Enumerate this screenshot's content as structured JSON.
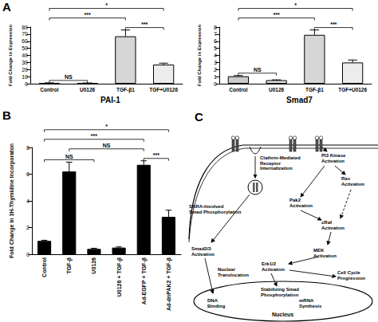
{
  "chart_data": [
    {
      "type": "bar",
      "title": "PAI-1",
      "categories": [
        "Control",
        "U0126",
        "TGF-β1",
        "TGF+U0126"
      ],
      "values": [
        1.0,
        0.8,
        67,
        27
      ],
      "errors": [
        0.2,
        0.2,
        9,
        2
      ],
      "colors": [
        "#ffffff",
        "#ffffff",
        "#d6d6d6",
        "#ececec"
      ],
      "y_label": "Fold Change in Expression",
      "ylim": [
        0,
        80
      ],
      "yticks": [
        0,
        10,
        20,
        30,
        40,
        50,
        60,
        70,
        80
      ],
      "grid": false,
      "significance": [
        {
          "from": "Control",
          "to": "U0126",
          "label": "NS"
        },
        {
          "from": "TGF-β1",
          "to": "TGF+U0126",
          "label": "***"
        },
        {
          "from": "Control",
          "to": "TGF-β1",
          "label": "***"
        },
        {
          "from": "Control",
          "to": "TGF+U0126",
          "label": "*"
        }
      ]
    },
    {
      "type": "bar",
      "title": "Smad7",
      "categories": [
        "Control",
        "U0126",
        "TGF-β1",
        "TGF+U0126"
      ],
      "values": [
        1.05,
        0.5,
        6.9,
        3.0
      ],
      "errors": [
        0.1,
        0.05,
        0.7,
        0.35
      ],
      "colors": [
        "#cccccc",
        "#e2e2e2",
        "#d6d6d6",
        "#ececec"
      ],
      "y_label": "Fold Change in Expression",
      "ylim": [
        0,
        8
      ],
      "yticks": [
        0,
        1,
        2,
        3,
        4,
        5,
        6,
        7,
        8
      ],
      "grid": false,
      "significance": [
        {
          "from": "Control",
          "to": "U0126",
          "label": "NS"
        },
        {
          "from": "TGF-β1",
          "to": "TGF+U0126",
          "label": "***"
        },
        {
          "from": "Control",
          "to": "TGF-β1",
          "label": "***"
        },
        {
          "from": "Control",
          "to": "TGF+U0126",
          "label": "*"
        }
      ]
    },
    {
      "type": "bar",
      "categories": [
        "Control",
        "TGF-β",
        "U0126",
        "U0126 + TGF-β",
        "Ad-EGFP + TGF-β",
        "Ad-dnPAK2 + TGF-β"
      ],
      "values": [
        1.0,
        6.2,
        0.4,
        0.5,
        6.7,
        2.8
      ],
      "errors": [
        0.05,
        0.7,
        0.05,
        0.05,
        0.3,
        0.5
      ],
      "color": "#000000",
      "y_label": "Fold Change in 3H-Thymidine Incorporaton",
      "ylim": [
        0,
        8
      ],
      "yticks": [
        0,
        2,
        4,
        6,
        8
      ],
      "grid": false,
      "significance": [
        {
          "from": "Ad-EGFP + TGF-β",
          "to": "Ad-dnPAK2 + TGF-β",
          "label": "***"
        },
        {
          "from": "Control",
          "to": "U0126",
          "label": "NS"
        },
        {
          "from": "TGF-β",
          "to": "Ad-EGFP + TGF-β",
          "label": "NS"
        },
        {
          "from": "Control",
          "to": "Ad-EGFP + TGF-β",
          "label": "***"
        },
        {
          "from": "Control",
          "to": "Ad-dnPAK2 + TGF-β",
          "label": "*"
        }
      ]
    }
  ],
  "panel_labels": [
    "A",
    "B",
    "C"
  ],
  "diagram": {
    "nodes": [
      [
        "PI3 Kinase",
        "Activation"
      ],
      [
        "Ras",
        "Activation"
      ],
      [
        "Clathrin-Mediated",
        "Receptor",
        "Internalization"
      ],
      [
        "Pak2",
        "Activation"
      ],
      [
        "cRaf",
        "Activation"
      ],
      [
        "SARA-Involved",
        "Smad Phosphorylation"
      ],
      [
        "Smad2/3",
        "Activation"
      ],
      [
        "MEK",
        "Activation"
      ],
      [
        "Erk1/2",
        "Activation"
      ],
      [
        "Nuclear",
        "Translocation"
      ],
      [
        "Stabilizing Smad",
        "Phosphorylation"
      ],
      [
        "Cell Cycle",
        "Progression"
      ],
      [
        "DNA",
        "Binding"
      ],
      [
        "mRNA",
        "Synthesis"
      ],
      [
        "Nucleus"
      ]
    ]
  }
}
